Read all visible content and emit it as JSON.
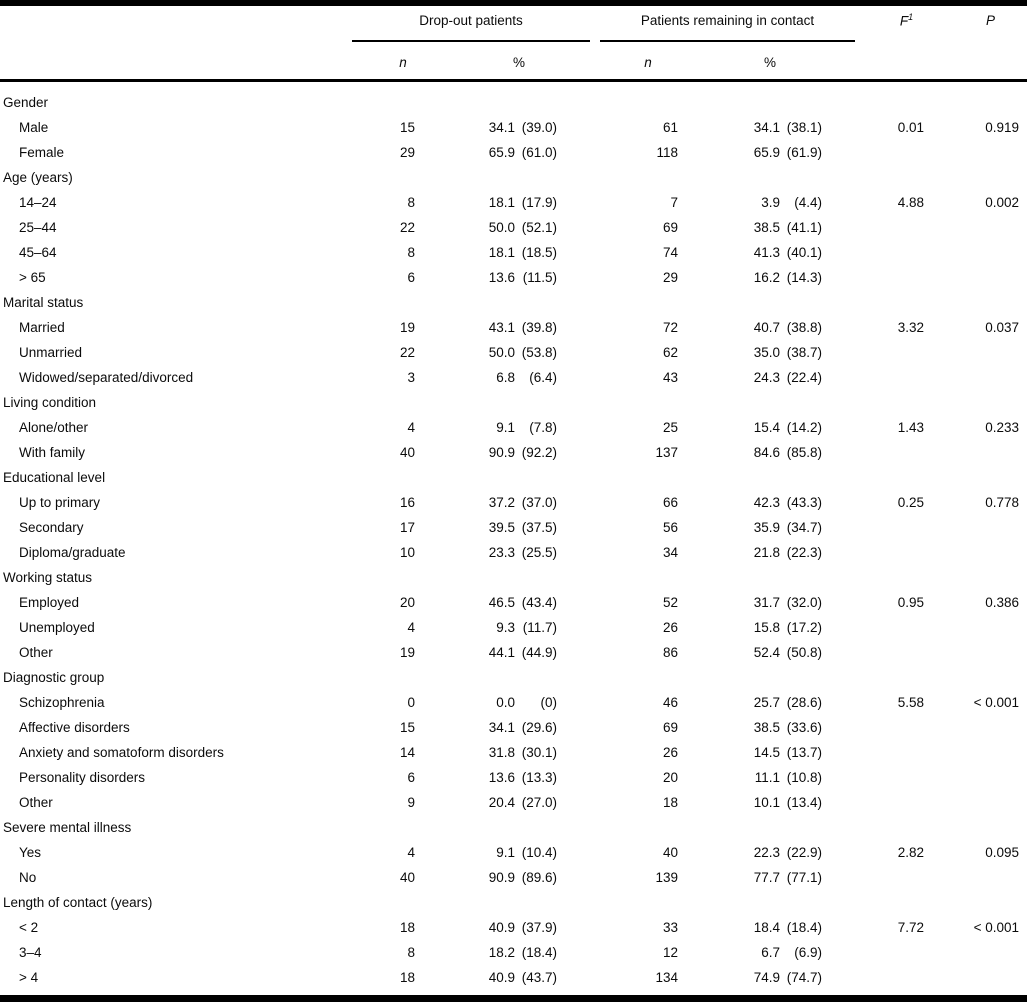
{
  "header": {
    "group1": "Drop-out patients",
    "group2": "Patients remaining in contact",
    "sub_n1": "n",
    "sub_pct1": "%",
    "sub_n2": "n",
    "sub_pct2": "%",
    "f_base": "F",
    "f_sup": "1",
    "p_label": "P"
  },
  "colors": {
    "text": "#0b0b0b",
    "rule": "#000000",
    "background": "#ffffff"
  },
  "table": {
    "rows": [
      {
        "kind": "group",
        "label": "Gender"
      },
      {
        "kind": "item",
        "label": "Male",
        "n1": "15",
        "v1": "34.1",
        "q1": "(39.0)",
        "n2": "61",
        "v2": "34.1",
        "q2": "(38.1)",
        "f": "0.01",
        "p": "0.919"
      },
      {
        "kind": "item",
        "label": "Female",
        "n1": "29",
        "v1": "65.9",
        "q1": "(61.0)",
        "n2": "118",
        "v2": "65.9",
        "q2": "(61.9)",
        "f": "",
        "p": ""
      },
      {
        "kind": "group",
        "label": "Age (years)"
      },
      {
        "kind": "item",
        "label": "14–24",
        "n1": "8",
        "v1": "18.1",
        "q1": "(17.9)",
        "n2": "7",
        "v2": "3.9",
        "q2": "(4.4)",
        "f": "4.88",
        "p": "0.002"
      },
      {
        "kind": "item",
        "label": "25–44",
        "n1": "22",
        "v1": "50.0",
        "q1": "(52.1)",
        "n2": "69",
        "v2": "38.5",
        "q2": "(41.1)",
        "f": "",
        "p": ""
      },
      {
        "kind": "item",
        "label": "45–64",
        "n1": "8",
        "v1": "18.1",
        "q1": "(18.5)",
        "n2": "74",
        "v2": "41.3",
        "q2": "(40.1)",
        "f": "",
        "p": ""
      },
      {
        "kind": "item",
        "label": "> 65",
        "n1": "6",
        "v1": "13.6",
        "q1": "(11.5)",
        "n2": "29",
        "v2": "16.2",
        "q2": "(14.3)",
        "f": "",
        "p": ""
      },
      {
        "kind": "group",
        "label": "Marital status"
      },
      {
        "kind": "item",
        "label": "Married",
        "n1": "19",
        "v1": "43.1",
        "q1": "(39.8)",
        "n2": "72",
        "v2": "40.7",
        "q2": "(38.8)",
        "f": "3.32",
        "p": "0.037"
      },
      {
        "kind": "item",
        "label": "Unmarried",
        "n1": "22",
        "v1": "50.0",
        "q1": "(53.8)",
        "n2": "62",
        "v2": "35.0",
        "q2": "(38.7)",
        "f": "",
        "p": ""
      },
      {
        "kind": "item",
        "label": "Widowed/separated/divorced",
        "n1": "3",
        "v1": "6.8",
        "q1": "(6.4)",
        "n2": "43",
        "v2": "24.3",
        "q2": "(22.4)",
        "f": "",
        "p": ""
      },
      {
        "kind": "group",
        "label": "Living condition"
      },
      {
        "kind": "item",
        "label": "Alone/other",
        "n1": "4",
        "v1": "9.1",
        "q1": "(7.8)",
        "n2": "25",
        "v2": "15.4",
        "q2": "(14.2)",
        "f": "1.43",
        "p": "0.233"
      },
      {
        "kind": "item",
        "label": "With family",
        "n1": "40",
        "v1": "90.9",
        "q1": "(92.2)",
        "n2": "137",
        "v2": "84.6",
        "q2": "(85.8)",
        "f": "",
        "p": ""
      },
      {
        "kind": "group",
        "label": "Educational level"
      },
      {
        "kind": "item",
        "label": "Up to primary",
        "n1": "16",
        "v1": "37.2",
        "q1": "(37.0)",
        "n2": "66",
        "v2": "42.3",
        "q2": "(43.3)",
        "f": "0.25",
        "p": "0.778"
      },
      {
        "kind": "item",
        "label": "Secondary",
        "n1": "17",
        "v1": "39.5",
        "q1": "(37.5)",
        "n2": "56",
        "v2": "35.9",
        "q2": "(34.7)",
        "f": "",
        "p": ""
      },
      {
        "kind": "item",
        "label": "Diploma/graduate",
        "n1": "10",
        "v1": "23.3",
        "q1": "(25.5)",
        "n2": "34",
        "v2": "21.8",
        "q2": "(22.3)",
        "f": "",
        "p": ""
      },
      {
        "kind": "group",
        "label": "Working status"
      },
      {
        "kind": "item",
        "label": "Employed",
        "n1": "20",
        "v1": "46.5",
        "q1": "(43.4)",
        "n2": "52",
        "v2": "31.7",
        "q2": "(32.0)",
        "f": "0.95",
        "p": "0.386"
      },
      {
        "kind": "item",
        "label": "Unemployed",
        "n1": "4",
        "v1": "9.3",
        "q1": "(11.7)",
        "n2": "26",
        "v2": "15.8",
        "q2": "(17.2)",
        "f": "",
        "p": ""
      },
      {
        "kind": "item",
        "label": "Other",
        "n1": "19",
        "v1": "44.1",
        "q1": "(44.9)",
        "n2": "86",
        "v2": "52.4",
        "q2": "(50.8)",
        "f": "",
        "p": ""
      },
      {
        "kind": "group",
        "label": "Diagnostic group"
      },
      {
        "kind": "item",
        "label": "Schizophrenia",
        "n1": "0",
        "v1": "0.0",
        "q1": "(0)",
        "n2": "46",
        "v2": "25.7",
        "q2": "(28.6)",
        "f": "5.58",
        "p": "< 0.001"
      },
      {
        "kind": "item",
        "label": "Affective disorders",
        "n1": "15",
        "v1": "34.1",
        "q1": "(29.6)",
        "n2": "69",
        "v2": "38.5",
        "q2": "(33.6)",
        "f": "",
        "p": ""
      },
      {
        "kind": "item",
        "label": "Anxiety and somatoform disorders",
        "n1": "14",
        "v1": "31.8",
        "q1": "(30.1)",
        "n2": "26",
        "v2": "14.5",
        "q2": "(13.7)",
        "f": "",
        "p": ""
      },
      {
        "kind": "item",
        "label": "Personality disorders",
        "n1": "6",
        "v1": "13.6",
        "q1": "(13.3)",
        "n2": "20",
        "v2": "11.1",
        "q2": "(10.8)",
        "f": "",
        "p": ""
      },
      {
        "kind": "item",
        "label": "Other",
        "n1": "9",
        "v1": "20.4",
        "q1": "(27.0)",
        "n2": "18",
        "v2": "10.1",
        "q2": "(13.4)",
        "f": "",
        "p": ""
      },
      {
        "kind": "group",
        "label": "Severe mental illness"
      },
      {
        "kind": "item",
        "label": "Yes",
        "n1": "4",
        "v1": "9.1",
        "q1": "(10.4)",
        "n2": "40",
        "v2": "22.3",
        "q2": "(22.9)",
        "f": "2.82",
        "p": "0.095"
      },
      {
        "kind": "item",
        "label": "No",
        "n1": "40",
        "v1": "90.9",
        "q1": "(89.6)",
        "n2": "139",
        "v2": "77.7",
        "q2": "(77.1)",
        "f": "",
        "p": ""
      },
      {
        "kind": "group",
        "label": "Length of contact (years)"
      },
      {
        "kind": "item",
        "label": "< 2",
        "n1": "18",
        "v1": "40.9",
        "q1": "(37.9)",
        "n2": "33",
        "v2": "18.4",
        "q2": "(18.4)",
        "f": "7.72",
        "p": "< 0.001"
      },
      {
        "kind": "item",
        "label": "3–4",
        "n1": "8",
        "v1": "18.2",
        "q1": "(18.4)",
        "n2": "12",
        "v2": "6.7",
        "q2": "(6.9)",
        "f": "",
        "p": ""
      },
      {
        "kind": "item",
        "label": "> 4",
        "n1": "18",
        "v1": "40.9",
        "q1": "(43.7)",
        "n2": "134",
        "v2": "74.9",
        "q2": "(74.7)",
        "f": "",
        "p": ""
      }
    ]
  }
}
